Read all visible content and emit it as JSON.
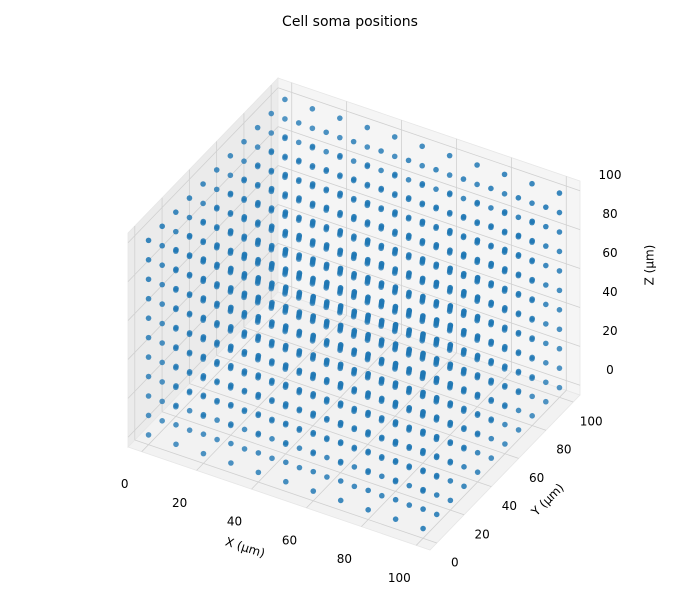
{
  "chart_data": {
    "type": "scatter3d",
    "title": "Cell soma positions",
    "x_label": "X (μm)",
    "y_label": "Y (μm)",
    "z_label": "Z (μm)",
    "x": [
      0,
      10,
      20,
      30,
      40,
      50,
      60,
      70,
      80,
      90,
      100
    ],
    "y": [
      0,
      10,
      20,
      30,
      40,
      50,
      60,
      70,
      80,
      90,
      100
    ],
    "z": [
      0,
      10,
      20,
      30,
      40,
      50,
      60,
      70,
      80,
      90,
      100
    ],
    "color": "#1f77b4",
    "xlim": [
      -5,
      105
    ],
    "ylim": [
      -5,
      105
    ],
    "zlim": [
      -5,
      105
    ],
    "xticks": [
      0,
      20,
      40,
      60,
      80,
      100
    ],
    "yticks": [
      0,
      20,
      40,
      60,
      80,
      100
    ],
    "zticks": [
      0,
      20,
      40,
      60,
      80,
      100
    ],
    "grid": true
  }
}
